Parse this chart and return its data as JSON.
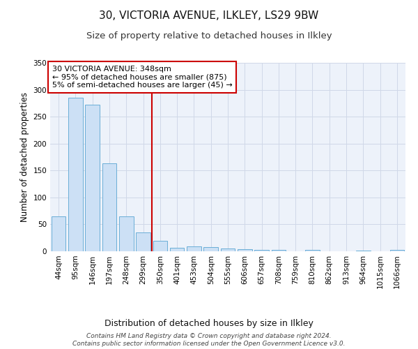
{
  "title1": "30, VICTORIA AVENUE, ILKLEY, LS29 9BW",
  "title2": "Size of property relative to detached houses in Ilkley",
  "xlabel": "Distribution of detached houses by size in Ilkley",
  "ylabel": "Number of detached properties",
  "bin_labels": [
    "44sqm",
    "95sqm",
    "146sqm",
    "197sqm",
    "248sqm",
    "299sqm",
    "350sqm",
    "401sqm",
    "453sqm",
    "504sqm",
    "555sqm",
    "606sqm",
    "657sqm",
    "708sqm",
    "759sqm",
    "810sqm",
    "862sqm",
    "913sqm",
    "964sqm",
    "1015sqm",
    "1066sqm"
  ],
  "bar_heights": [
    65,
    285,
    272,
    163,
    65,
    35,
    20,
    7,
    9,
    8,
    5,
    4,
    3,
    3,
    0,
    3,
    0,
    0,
    1,
    0,
    3
  ],
  "bar_color": "#cce0f5",
  "bar_edge_color": "#6aaed6",
  "grid_color": "#d0d8e8",
  "background_color": "#edf2fa",
  "vline_x_index": 6,
  "vline_color": "#cc0000",
  "annotation_line1": "30 VICTORIA AVENUE: 348sqm",
  "annotation_line2": "← 95% of detached houses are smaller (875)",
  "annotation_line3": "5% of semi-detached houses are larger (45) →",
  "annotation_box_color": "#ffffff",
  "annotation_box_edge": "#cc0000",
  "ylim": [
    0,
    350
  ],
  "yticks": [
    0,
    50,
    100,
    150,
    200,
    250,
    300,
    350
  ],
  "footer": "Contains HM Land Registry data © Crown copyright and database right 2024.\nContains public sector information licensed under the Open Government Licence v3.0.",
  "title1_fontsize": 11,
  "title2_fontsize": 9.5,
  "xlabel_fontsize": 9,
  "ylabel_fontsize": 8.5,
  "tick_fontsize": 7.5,
  "annotation_fontsize": 8,
  "footer_fontsize": 6.5
}
